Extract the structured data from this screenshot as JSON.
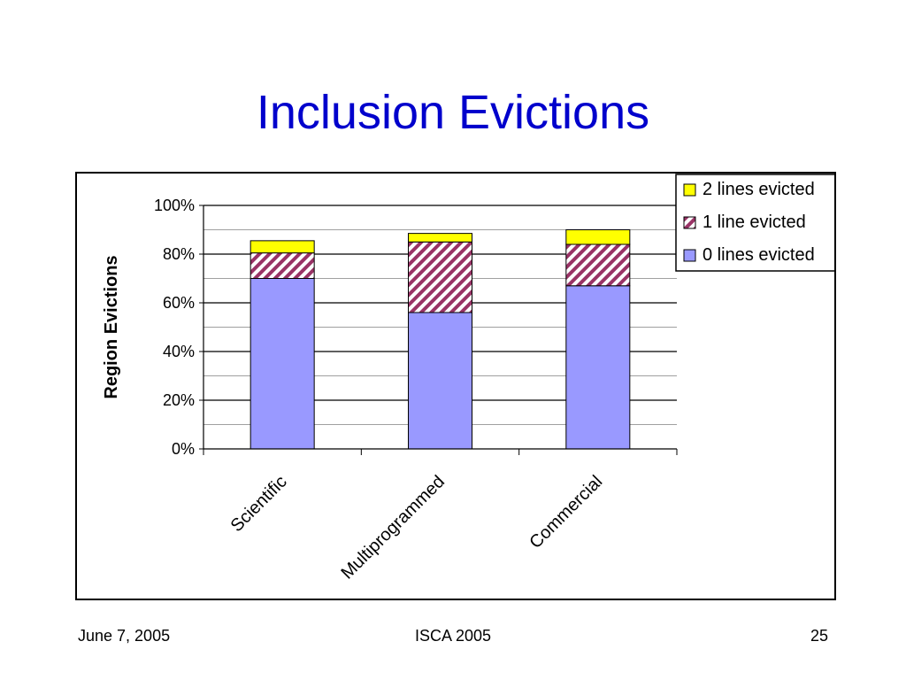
{
  "slide": {
    "title": "Inclusion Evictions"
  },
  "footer": {
    "date": "June 7, 2005",
    "conference": "ISCA 2005",
    "page": "25"
  },
  "colors": {
    "title": "#0000cc",
    "zero_lines": "#9999ff",
    "one_line_stripe": "#993366",
    "two_lines": "#ffff00"
  },
  "chart_data": {
    "type": "bar",
    "stacked": true,
    "title": "",
    "xlabel": "",
    "ylabel": "Region Evictions",
    "ylim": [
      0,
      100
    ],
    "yticks": [
      "0%",
      "20%",
      "40%",
      "60%",
      "80%",
      "100%"
    ],
    "categories": [
      "Scientific",
      "Multiprogrammed",
      "Commercial"
    ],
    "series": [
      {
        "name": "0 lines evicted",
        "values": [
          70,
          56,
          67
        ],
        "pattern": "solid",
        "color": "#9999ff"
      },
      {
        "name": "1 line evicted",
        "values": [
          10.5,
          29,
          17
        ],
        "pattern": "diagonal-stripes",
        "color": "#993366"
      },
      {
        "name": "2 lines evicted",
        "values": [
          5,
          3.5,
          6
        ],
        "pattern": "solid",
        "color": "#ffff00"
      }
    ],
    "legend": {
      "position": "top-right",
      "order": [
        "2 lines evicted",
        "1 line evicted",
        "0 lines evicted"
      ]
    },
    "grid": true
  }
}
